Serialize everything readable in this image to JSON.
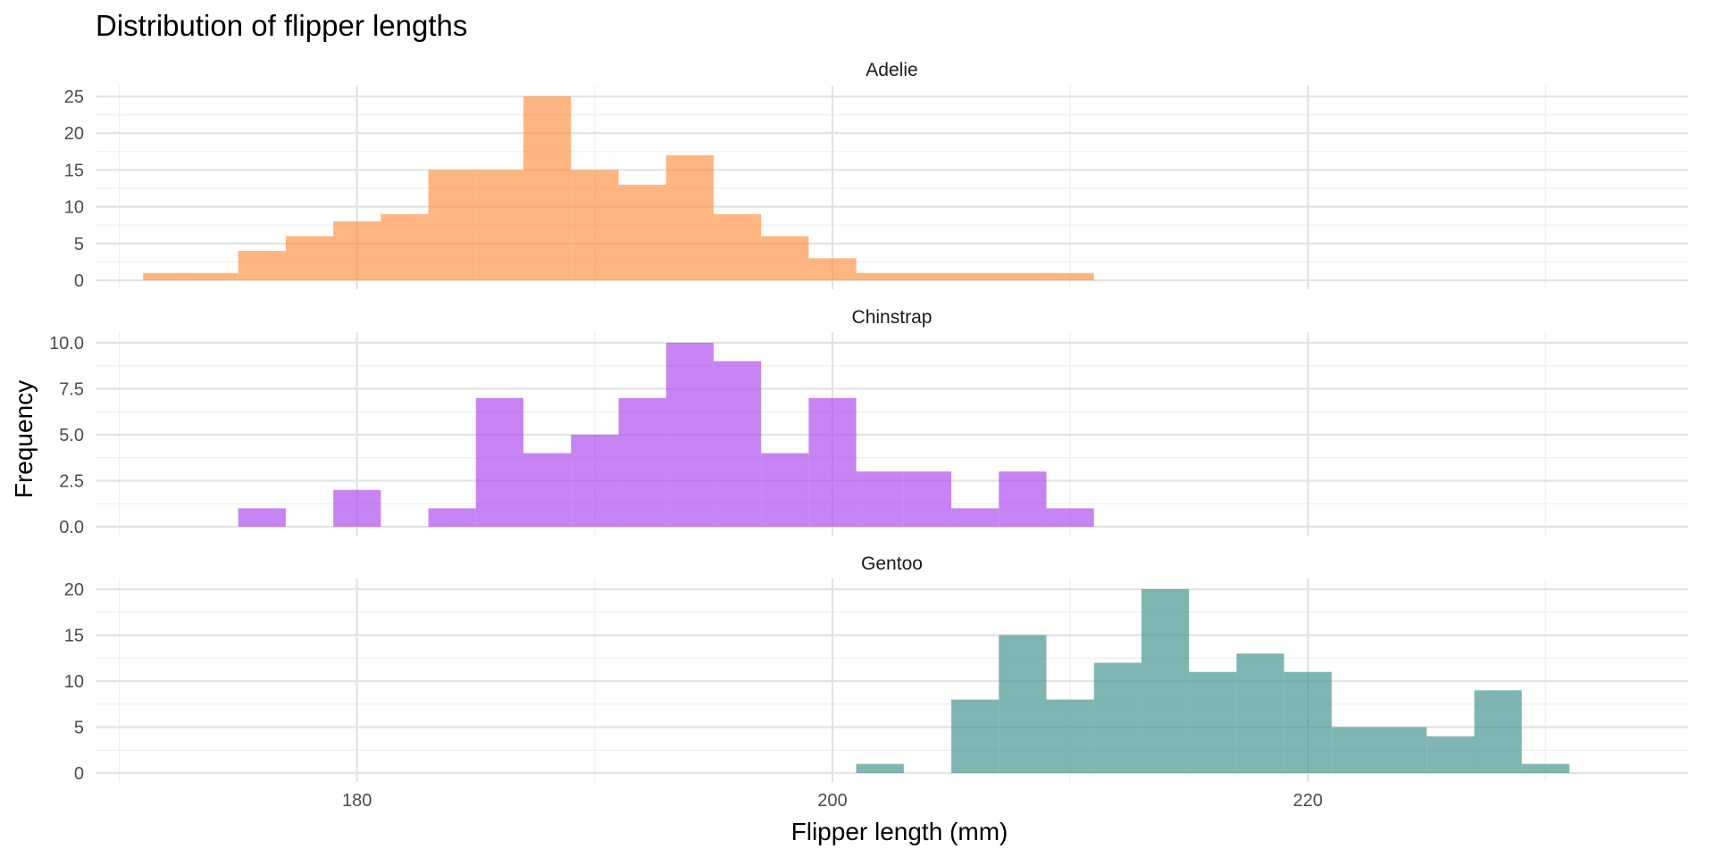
{
  "chart_data": {
    "type": "bar",
    "title": "Distribution of flipper lengths",
    "xlabel": "Flipper length (mm)",
    "ylabel": "Frequency",
    "binwidth": 2,
    "xlim": [
      169,
      236
    ],
    "x_ticks": [
      180,
      200,
      220
    ],
    "grid": true,
    "legend": "none",
    "panels": [
      {
        "name": "Adelie",
        "color": "#fd8d3c",
        "ylim": [
          0,
          25
        ],
        "y_ticks": [
          0,
          5,
          10,
          15,
          20,
          25
        ],
        "y_tick_labels": [
          "0",
          "5",
          "10",
          "15",
          "20",
          "25"
        ],
        "bins": [
          {
            "x": 172,
            "count": 1
          },
          {
            "x": 174,
            "count": 1
          },
          {
            "x": 176,
            "count": 4
          },
          {
            "x": 178,
            "count": 6
          },
          {
            "x": 180,
            "count": 8
          },
          {
            "x": 182,
            "count": 9
          },
          {
            "x": 184,
            "count": 15
          },
          {
            "x": 186,
            "count": 15
          },
          {
            "x": 188,
            "count": 25
          },
          {
            "x": 190,
            "count": 15
          },
          {
            "x": 192,
            "count": 13
          },
          {
            "x": 194,
            "count": 17
          },
          {
            "x": 196,
            "count": 9
          },
          {
            "x": 198,
            "count": 6
          },
          {
            "x": 200,
            "count": 3
          },
          {
            "x": 202,
            "count": 1
          },
          {
            "x": 204,
            "count": 1
          },
          {
            "x": 206,
            "count": 1
          },
          {
            "x": 208,
            "count": 1
          },
          {
            "x": 210,
            "count": 1
          }
        ]
      },
      {
        "name": "Chinstrap",
        "color": "#a942eb",
        "ylim": [
          0,
          10
        ],
        "y_ticks": [
          0,
          2.5,
          5,
          7.5,
          10
        ],
        "y_tick_labels": [
          "0.0",
          "2.5",
          "5.0",
          "7.5",
          "10.0"
        ],
        "bins": [
          {
            "x": 176,
            "count": 1
          },
          {
            "x": 180,
            "count": 2
          },
          {
            "x": 184,
            "count": 1
          },
          {
            "x": 186,
            "count": 7
          },
          {
            "x": 188,
            "count": 4
          },
          {
            "x": 190,
            "count": 5
          },
          {
            "x": 192,
            "count": 7
          },
          {
            "x": 194,
            "count": 10
          },
          {
            "x": 196,
            "count": 9
          },
          {
            "x": 198,
            "count": 4
          },
          {
            "x": 200,
            "count": 7
          },
          {
            "x": 202,
            "count": 3
          },
          {
            "x": 204,
            "count": 3
          },
          {
            "x": 206,
            "count": 1
          },
          {
            "x": 208,
            "count": 3
          },
          {
            "x": 210,
            "count": 1
          }
        ]
      },
      {
        "name": "Gentoo",
        "color": "#3b8f8a",
        "ylim": [
          0,
          20
        ],
        "y_ticks": [
          0,
          5,
          10,
          15,
          20
        ],
        "y_tick_labels": [
          "0",
          "5",
          "10",
          "15",
          "20"
        ],
        "bins": [
          {
            "x": 202,
            "count": 1
          },
          {
            "x": 206,
            "count": 8
          },
          {
            "x": 208,
            "count": 15
          },
          {
            "x": 210,
            "count": 8
          },
          {
            "x": 212,
            "count": 12
          },
          {
            "x": 214,
            "count": 20
          },
          {
            "x": 216,
            "count": 11
          },
          {
            "x": 218,
            "count": 13
          },
          {
            "x": 220,
            "count": 11
          },
          {
            "x": 222,
            "count": 5
          },
          {
            "x": 224,
            "count": 5
          },
          {
            "x": 226,
            "count": 4
          },
          {
            "x": 228,
            "count": 9
          },
          {
            "x": 230,
            "count": 1
          }
        ]
      }
    ]
  }
}
